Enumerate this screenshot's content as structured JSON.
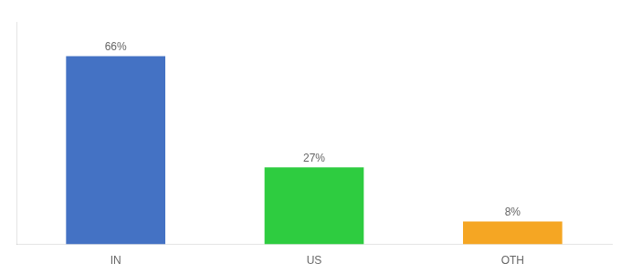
{
  "chart_data": {
    "type": "bar",
    "categories": [
      "IN",
      "US",
      "OTH"
    ],
    "values": [
      66,
      27,
      8
    ],
    "value_labels": [
      "66%",
      "27%",
      "8%"
    ],
    "colors": [
      "#4472c4",
      "#2ecc40",
      "#f5a623"
    ],
    "ylim": [
      0,
      78
    ],
    "tick_labels": "x",
    "data_labels": true,
    "grid": false
  }
}
